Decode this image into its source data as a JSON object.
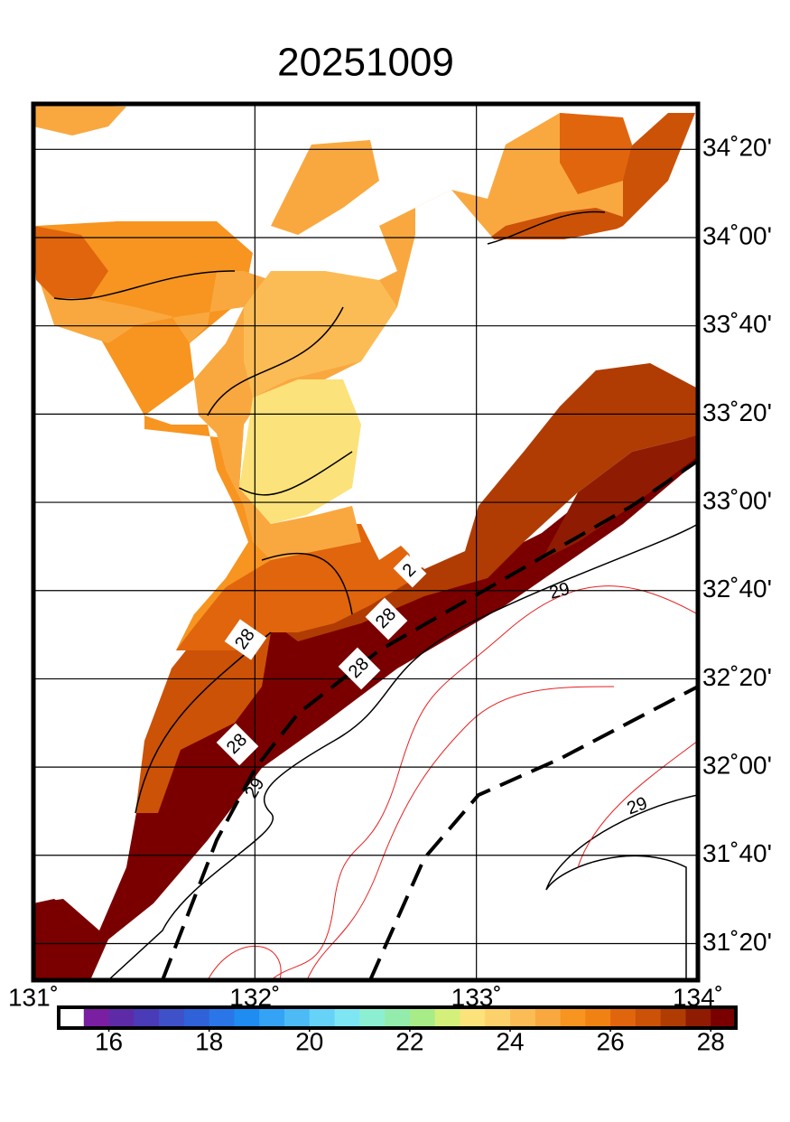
{
  "title": "20251009",
  "map": {
    "lonlim": [
      131,
      134
    ],
    "latlim": [
      31.195,
      34.505
    ],
    "lon_ticks": [
      {
        "value": 131,
        "label": "131˚"
      },
      {
        "value": 132,
        "label": "132˚"
      },
      {
        "value": 133,
        "label": "133˚"
      },
      {
        "value": 134,
        "label": "134˚"
      }
    ],
    "lat_ticks": [
      {
        "value": 31.3333,
        "label": "31˚20'"
      },
      {
        "value": 31.6667,
        "label": "31˚40'"
      },
      {
        "value": 32,
        "label": "32˚00'"
      },
      {
        "value": 32.3333,
        "label": "32˚20'"
      },
      {
        "value": 32.6667,
        "label": "32˚40'"
      },
      {
        "value": 33,
        "label": "33˚00'"
      },
      {
        "value": 33.3333,
        "label": "33˚20'"
      },
      {
        "value": 33.6667,
        "label": "33˚40'"
      },
      {
        "value": 34,
        "label": "34˚00'"
      },
      {
        "value": 34.3333,
        "label": "34˚20'"
      }
    ]
  },
  "contour_labels": [
    "29",
    "29",
    "29",
    "28",
    "28",
    "28",
    "28",
    "2"
  ],
  "colorbar": {
    "lim": [
      15,
      28.5
    ],
    "ticks": [
      16,
      18,
      20,
      22,
      24,
      26,
      28
    ],
    "colors": [
      "#ffffff",
      "#7b1fa2",
      "#5e2ba8",
      "#4a3cb8",
      "#3f51c8",
      "#2f62d8",
      "#2a76e8",
      "#1e8cf0",
      "#35a3f5",
      "#4cbaf5",
      "#66d2f7",
      "#7ee6f3",
      "#8cefd2",
      "#94ecac",
      "#a8ec88",
      "#d4f07a",
      "#fbe27a",
      "#fcd06a",
      "#fcbc55",
      "#f9a840",
      "#f79520",
      "#f08214",
      "#e0650c",
      "#cc5208",
      "#b03c04",
      "#8f1c02",
      "#7a0000"
    ]
  }
}
